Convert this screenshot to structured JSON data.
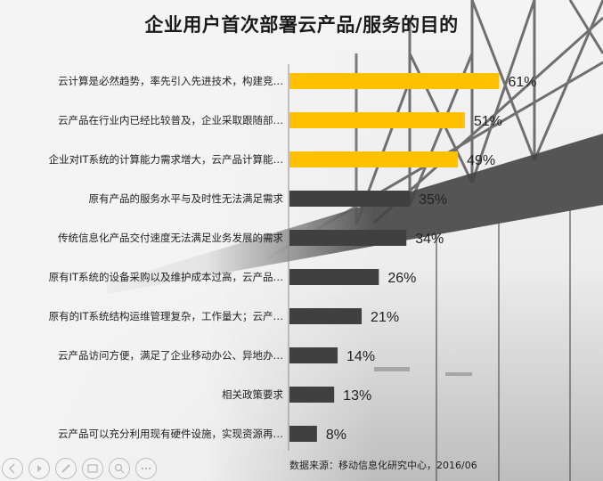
{
  "title": "企业用户首次部署云产品/服务的目的",
  "source": "数据来源：移动信息化研究中心，2016/06",
  "colors": {
    "highlight": "#ffc000",
    "default": "#404040",
    "text": "#1a1a1a"
  },
  "toolbar": {
    "icons": [
      "back-icon",
      "play-icon",
      "pen-icon",
      "slides-icon",
      "zoom-icon",
      "more-icon"
    ]
  },
  "chart_data": {
    "type": "bar",
    "orientation": "horizontal",
    "categories": [
      "云计算是必然趋势，率先引入先进技术，构建竞…",
      "云产品在行业内已经比较普及，企业采取跟随部…",
      "企业对IT系统的计算能力需求增大，云产品计算能…",
      "原有产品的服务水平与及时性无法满足需求",
      "传统信息化产品交付速度无法满足业务发展的需求",
      "原有IT系统的设备采购以及维护成本过高，云产品…",
      "原有的IT系统结构运维管理复杂，工作量大；云产…",
      "云产品访问方便，满足了企业移动办公、异地办…",
      "相关政策要求",
      "云产品可以充分利用现有硬件设施，实现资源再…"
    ],
    "values": [
      61,
      51,
      49,
      35,
      34,
      26,
      21,
      14,
      13,
      8
    ],
    "value_labels": [
      "61%",
      "51%",
      "49%",
      "35%",
      "34%",
      "26%",
      "21%",
      "14%",
      "13%",
      "8%"
    ],
    "highlight_top": 3,
    "xlim": [
      0,
      100
    ],
    "unit": "%",
    "grid": false,
    "legend": "none"
  }
}
